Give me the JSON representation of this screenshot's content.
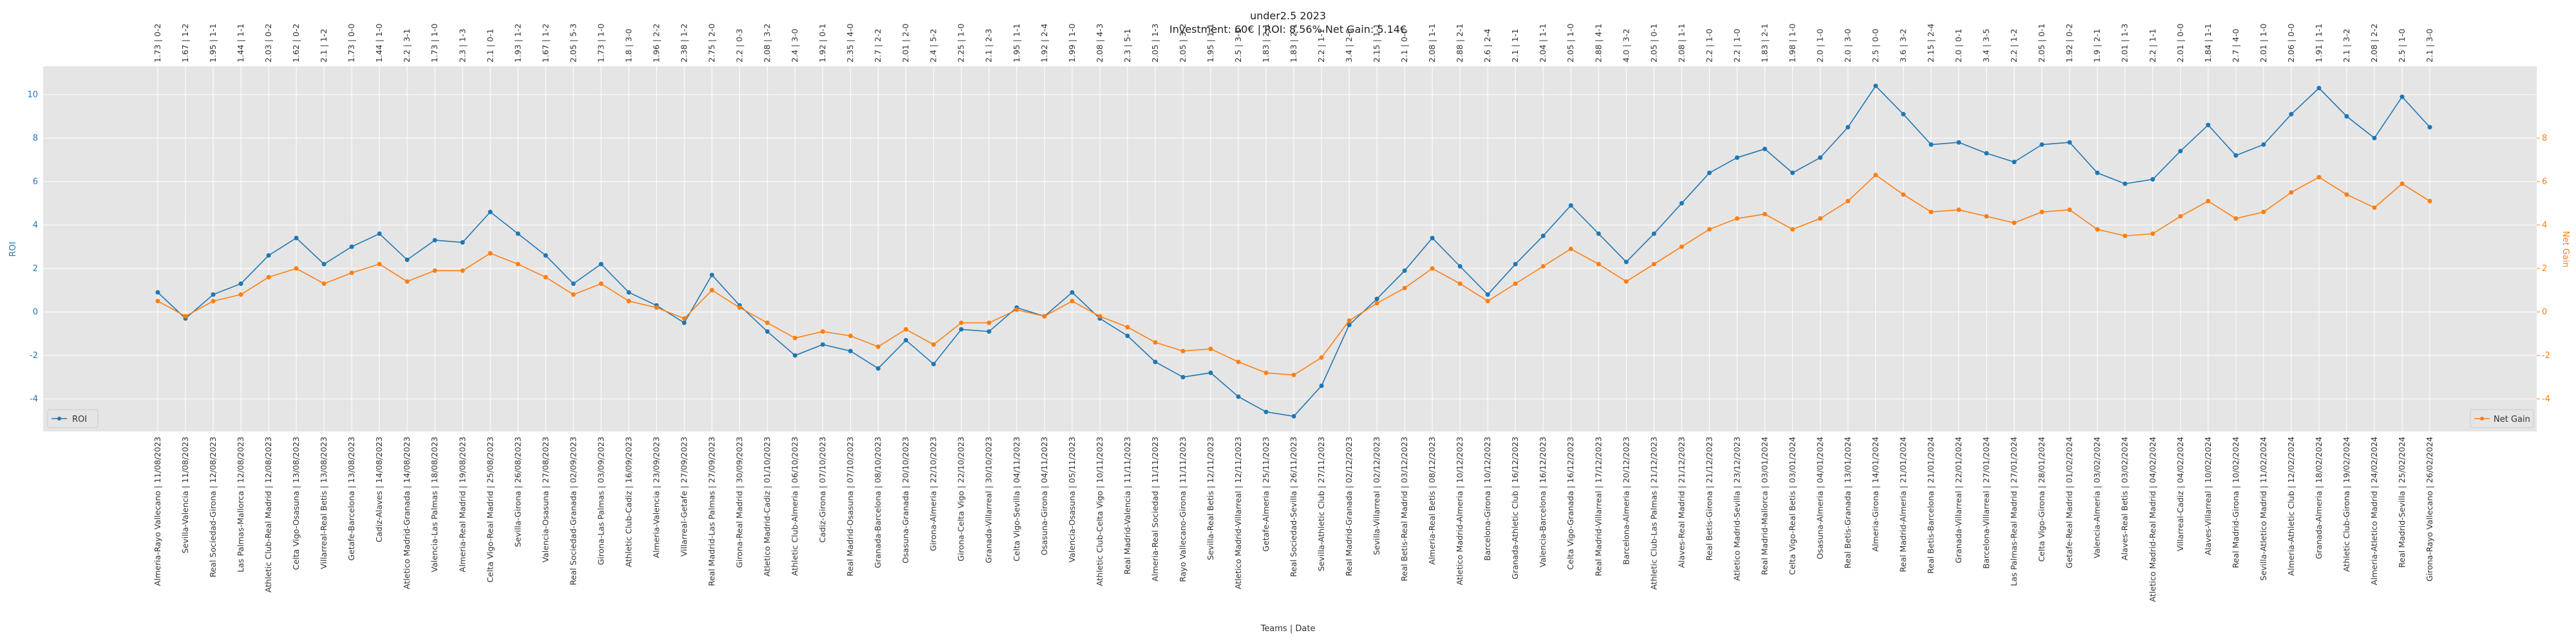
{
  "chart_data": {
    "type": "line",
    "title": "under2.5 2023",
    "subtitle": "Investment: 60€ | ROI: 8.56% Net Gain: 5.14€",
    "xlabel": "Teams | Date",
    "ylabel_left": "ROI",
    "ylabel_right": "Net Gain",
    "ylim_left": [
      -5.5,
      11.3
    ],
    "ylim_right": [
      -5.5,
      11.3
    ],
    "yticks_left": [
      -4,
      -2,
      0,
      2,
      4,
      6,
      8,
      10
    ],
    "yticks_right": [
      -4,
      -2,
      0,
      2,
      4,
      6,
      8
    ],
    "grid": true,
    "legend_left": "bottom-left",
    "legend_right": "bottom-right",
    "colors": {
      "roi": "#1f77b4",
      "gain": "#ff7f0e",
      "plot_bg": "#e5e5e5"
    },
    "categories": [
      "Almeria-Rayo Vallecano | 11/08/2023",
      "Sevilla-Valencia | 11/08/2023",
      "Real Sociedad-Girona | 12/08/2023",
      "Las Palmas-Mallorca | 12/08/2023",
      "Athletic Club-Real Madrid | 12/08/2023",
      "Celta Vigo-Osasuna | 13/08/2023",
      "Villarreal-Real Betis | 13/08/2023",
      "Getafe-Barcelona | 13/08/2023",
      "Cadiz-Alaves | 14/08/2023",
      "Atletico Madrid-Granada | 14/08/2023",
      "Valencia-Las Palmas | 18/08/2023",
      "Almeria-Real Madrid | 19/08/2023",
      "Celta Vigo-Real Madrid | 25/08/2023",
      "Sevilla-Girona | 26/08/2023",
      "Valencia-Osasuna | 27/08/2023",
      "Real Sociedad-Granada | 02/09/2023",
      "Girona-Las Palmas | 03/09/2023",
      "Athletic Club-Cadiz | 16/09/2023",
      "Almeria-Valencia | 23/09/2023",
      "Villarreal-Getafe | 27/09/2023",
      "Real Madrid-Las Palmas | 27/09/2023",
      "Girona-Real Madrid | 30/09/2023",
      "Atletico Madrid-Cadiz | 01/10/2023",
      "Athletic Club-Almeria | 06/10/2023",
      "Cadiz-Girona | 07/10/2023",
      "Real Madrid-Osasuna | 07/10/2023",
      "Granada-Barcelona | 08/10/2023",
      "Osasuna-Granada | 20/10/2023",
      "Girona-Almeria | 22/10/2023",
      "Girona-Celta Vigo | 22/10/2023",
      "Granada-Villarreal | 30/10/2023",
      "Celta Vigo-Sevilla | 04/11/2023",
      "Osasuna-Girona | 04/11/2023",
      "Valencia-Osasuna | 05/11/2023",
      "Athletic Club-Celta Vigo | 10/11/2023",
      "Real Madrid-Valencia | 11/11/2023",
      "Almeria-Real Sociedad | 11/11/2023",
      "Rayo Vallecano-Girona | 11/11/2023",
      "Sevilla-Real Betis | 12/11/2023",
      "Atletico Madrid-Villarreal | 12/11/2023",
      "Getafe-Almeria | 25/11/2023",
      "Real Sociedad-Sevilla | 26/11/2023",
      "Sevilla-Athletic Club | 27/11/2023",
      "Real Madrid-Granada | 02/12/2023",
      "Sevilla-Villarreal | 02/12/2023",
      "Real Betis-Real Madrid | 03/12/2023",
      "Almeria-Real Betis | 08/12/2023",
      "Atletico Madrid-Almeria | 10/12/2023",
      "Barcelona-Girona | 10/12/2023",
      "Granada-Athletic Club | 16/12/2023",
      "Valencia-Barcelona | 16/12/2023",
      "Celta Vigo-Granada | 16/12/2023",
      "Real Madrid-Villarreal | 17/12/2023",
      "Barcelona-Almeria | 20/12/2023",
      "Athletic Club-Las Palmas | 21/12/2023",
      "Alaves-Real Madrid | 21/12/2023",
      "Real Betis-Girona | 21/12/2023",
      "Atletico Madrid-Sevilla | 23/12/2023",
      "Real Madrid-Mallorca | 03/01/2024",
      "Celta Vigo-Real Betis | 03/01/2024",
      "Osasuna-Almeria | 04/01/2024",
      "Real Betis-Granada | 13/01/2024",
      "Almeria-Girona | 14/01/2024",
      "Real Madrid-Almeria | 21/01/2024",
      "Real Betis-Barcelona | 21/01/2024",
      "Granada-Villarreal | 22/01/2024",
      "Barcelona-Villarreal | 27/01/2024",
      "Las Palmas-Real Madrid | 27/01/2024",
      "Celta Vigo-Girona | 28/01/2024",
      "Getafe-Real Madrid | 01/02/2024",
      "Valencia-Almeria | 03/02/2024",
      "Alaves-Real Betis | 03/02/2024",
      "Atletico Madrid-Real Madrid | 04/02/2024",
      "Villarreal-Cadiz | 04/02/2024",
      "Alaves-Villarreal | 10/02/2024",
      "Real Madrid-Girona | 10/02/2024",
      "Sevilla-Atletico Madrid | 11/02/2024",
      "Almeria-Athletic Club | 12/02/2024",
      "Granada-Almeria | 18/02/2024",
      "Athletic Club-Girona | 19/02/2024",
      "Almeria-Atletico Madrid | 24/02/2024",
      "Real Madrid-Sevilla | 25/02/2024",
      "Girona-Rayo Vallecano | 26/02/2024"
    ],
    "top_labels": [
      "1.73 | 0-2",
      "1.67 | 1-2",
      "1.95 | 1-1",
      "1.44 | 1-1",
      "2.03 | 0-2",
      "1.62 | 0-2",
      "2.1 | 1-2",
      "1.73 | 0-0",
      "1.44 | 1-0",
      "2.2 | 3-1",
      "1.73 | 1-0",
      "2.3 | 1-3",
      "2.1 | 0-1",
      "1.93 | 1-2",
      "1.67 | 1-2",
      "2.05 | 5-3",
      "1.73 | 1-0",
      "1.8 | 3-0",
      "1.96 | 2-2",
      "2.38 | 1-2",
      "2.75 | 2-0",
      "2.2 | 0-3",
      "2.08 | 3-2",
      "2.4 | 3-0",
      "1.92 | 0-1",
      "2.35 | 4-0",
      "2.7 | 2-2",
      "2.01 | 2-0",
      "2.4 | 5-2",
      "2.25 | 1-0",
      "2.1 | 2-3",
      "1.95 | 1-1",
      "1.92 | 2-4",
      "1.99 | 1-0",
      "2.08 | 4-3",
      "2.3 | 5-1",
      "2.05 | 1-3",
      "2.05 | 3-2",
      "1.95 | 1-1",
      "2.5 | 3-1",
      "1.83 | 2-1",
      "1.83 | 2-1",
      "2.2 | 1-1",
      "3.4 | 2-0",
      "2.15 | 1-1",
      "2.1 | 0-0",
      "2.08 | 1-1",
      "2.88 | 2-1",
      "2.6 | 2-4",
      "2.1 | 1-1",
      "2.04 | 1-1",
      "2.05 | 1-0",
      "2.88 | 4-1",
      "4.0 | 3-2",
      "2.05 | 0-1",
      "2.08 | 1-1",
      "2.2 | 1-0",
      "2.2 | 1-0",
      "1.83 | 2-1",
      "1.98 | 1-0",
      "2.0 | 1-0",
      "2.0 | 3-0",
      "2.5 | 0-0",
      "3.6 | 3-2",
      "2.15 | 2-4",
      "2.0 | 0-1",
      "3.4 | 3-5",
      "2.2 | 1-2",
      "2.05 | 0-1",
      "1.92 | 0-2",
      "1.9 | 2-1",
      "2.01 | 1-3",
      "2.2 | 1-1",
      "2.01 | 0-0",
      "1.84 | 1-1",
      "2.7 | 4-0",
      "2.01 | 1-0",
      "2.06 | 0-0",
      "1.91 | 1-1",
      "2.1 | 3-2",
      "2.08 | 2-2",
      "2.5 | 1-0",
      "2.1 | 3-0"
    ],
    "series": [
      {
        "name": "ROI",
        "axis": "left",
        "values": [
          0.9,
          -0.3,
          0.8,
          1.3,
          2.6,
          3.4,
          2.2,
          3.0,
          3.6,
          2.4,
          3.3,
          3.2,
          4.6,
          3.6,
          2.6,
          1.3,
          2.2,
          0.9,
          0.3,
          -0.5,
          1.7,
          0.3,
          -0.9,
          -2.0,
          -1.5,
          -1.8,
          -2.6,
          -1.3,
          -2.4,
          -0.8,
          -0.9,
          0.2,
          -0.2,
          0.9,
          -0.3,
          -1.1,
          -2.3,
          -3.0,
          -2.8,
          -3.9,
          -4.6,
          -4.8,
          -3.4,
          -0.6,
          0.6,
          1.9,
          3.4,
          2.1,
          0.8,
          2.2,
          3.5,
          4.9,
          3.6,
          2.3,
          3.6,
          5.0,
          6.4,
          7.1,
          7.5,
          6.4,
          7.1,
          8.5,
          10.4,
          9.1,
          7.7,
          7.8,
          7.3,
          6.9,
          7.7,
          7.8,
          6.4,
          5.9,
          6.1,
          7.4,
          8.6,
          7.2,
          7.7,
          9.1,
          10.3,
          9.0,
          8.0,
          9.9,
          8.5
        ]
      },
      {
        "name": "Net Gain",
        "axis": "right",
        "values": [
          0.5,
          -0.2,
          0.5,
          0.8,
          1.6,
          2.0,
          1.3,
          1.8,
          2.2,
          1.4,
          1.9,
          1.9,
          2.7,
          2.2,
          1.6,
          0.8,
          1.3,
          0.5,
          0.2,
          -0.3,
          1.0,
          0.2,
          -0.5,
          -1.2,
          -0.9,
          -1.1,
          -1.6,
          -0.8,
          -1.5,
          -0.5,
          -0.5,
          0.1,
          -0.2,
          0.5,
          -0.2,
          -0.7,
          -1.4,
          -1.8,
          -1.7,
          -2.3,
          -2.8,
          -2.9,
          -2.1,
          -0.4,
          0.4,
          1.1,
          2.0,
          1.3,
          0.5,
          1.3,
          2.1,
          2.9,
          2.2,
          1.4,
          2.2,
          3.0,
          3.8,
          4.3,
          4.5,
          3.8,
          4.3,
          5.1,
          6.3,
          5.4,
          4.6,
          4.7,
          4.4,
          4.1,
          4.6,
          4.7,
          3.8,
          3.5,
          3.6,
          4.4,
          5.1,
          4.3,
          4.6,
          5.5,
          6.2,
          5.4,
          4.8,
          5.9,
          5.1
        ]
      }
    ]
  }
}
